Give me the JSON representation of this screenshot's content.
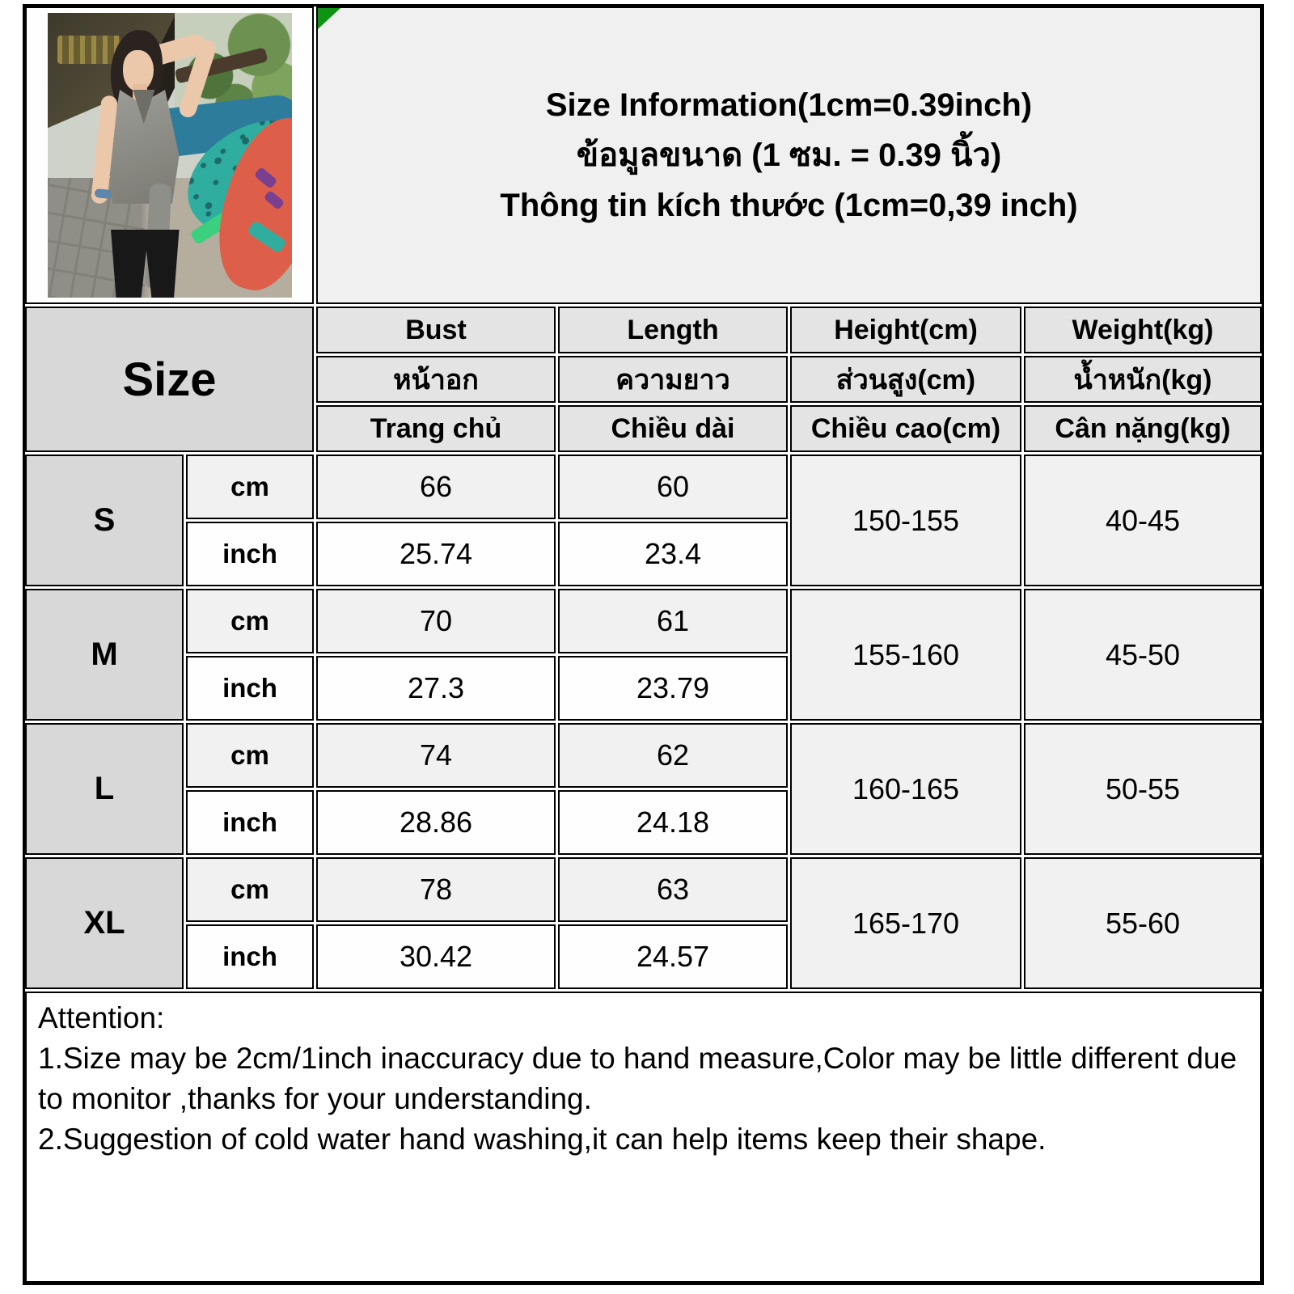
{
  "title": {
    "line_en": "Size Information(1cm=0.39inch)",
    "line_th": "ข้อมูลขนาด (1 ซม. = 0.39 นิ้ว)",
    "line_vi": "Thông tin kích thước (1cm=0,39 inch)"
  },
  "photo": {
    "description": "Model wearing grey halter tank top standing in front of kayaks"
  },
  "table": {
    "size_label": "Size",
    "unit_cm": "cm",
    "unit_inch": "inch",
    "columns": {
      "bust": {
        "en": "Bust",
        "th": "หน้าอก",
        "vi": "Trang chủ"
      },
      "length": {
        "en": "Length",
        "th": "ความยาว",
        "vi": "Chiều dài"
      },
      "height": {
        "en": "Height(cm)",
        "th": "ส่วนสูง(cm)",
        "vi": "Chiều cao(cm)"
      },
      "weight": {
        "en": "Weight(kg)",
        "th": "น้ำหนัก(kg)",
        "vi": "Cân nặng(kg)"
      }
    },
    "rows": [
      {
        "size": "S",
        "bust_cm": "66",
        "length_cm": "60",
        "bust_inch": "25.74",
        "length_inch": "23.4",
        "height": "150-155",
        "weight": "40-45"
      },
      {
        "size": "M",
        "bust_cm": "70",
        "length_cm": "61",
        "bust_inch": "27.3",
        "length_inch": "23.79",
        "height": "155-160",
        "weight": "45-50"
      },
      {
        "size": "L",
        "bust_cm": "74",
        "length_cm": "62",
        "bust_inch": "28.86",
        "length_inch": "24.18",
        "height": "160-165",
        "weight": "50-55"
      },
      {
        "size": "XL",
        "bust_cm": "78",
        "length_cm": "63",
        "bust_inch": "30.42",
        "length_inch": "24.57",
        "height": "165-170",
        "weight": "55-60"
      }
    ]
  },
  "attention": {
    "heading": "Attention:",
    "note1": "1.Size may be 2cm/1inch inaccuracy due to hand measure,Color may be little different due to monitor ,thanks for your understanding.",
    "note2": "2.Suggestion of cold water hand washing,it can help items keep their shape."
  },
  "colors": {
    "marker_green": "#0e9312",
    "border_black": "#000000",
    "header_gray": "#e4e4e4",
    "size_gray": "#d8d8d8",
    "row_light": "#f1f1f1"
  }
}
